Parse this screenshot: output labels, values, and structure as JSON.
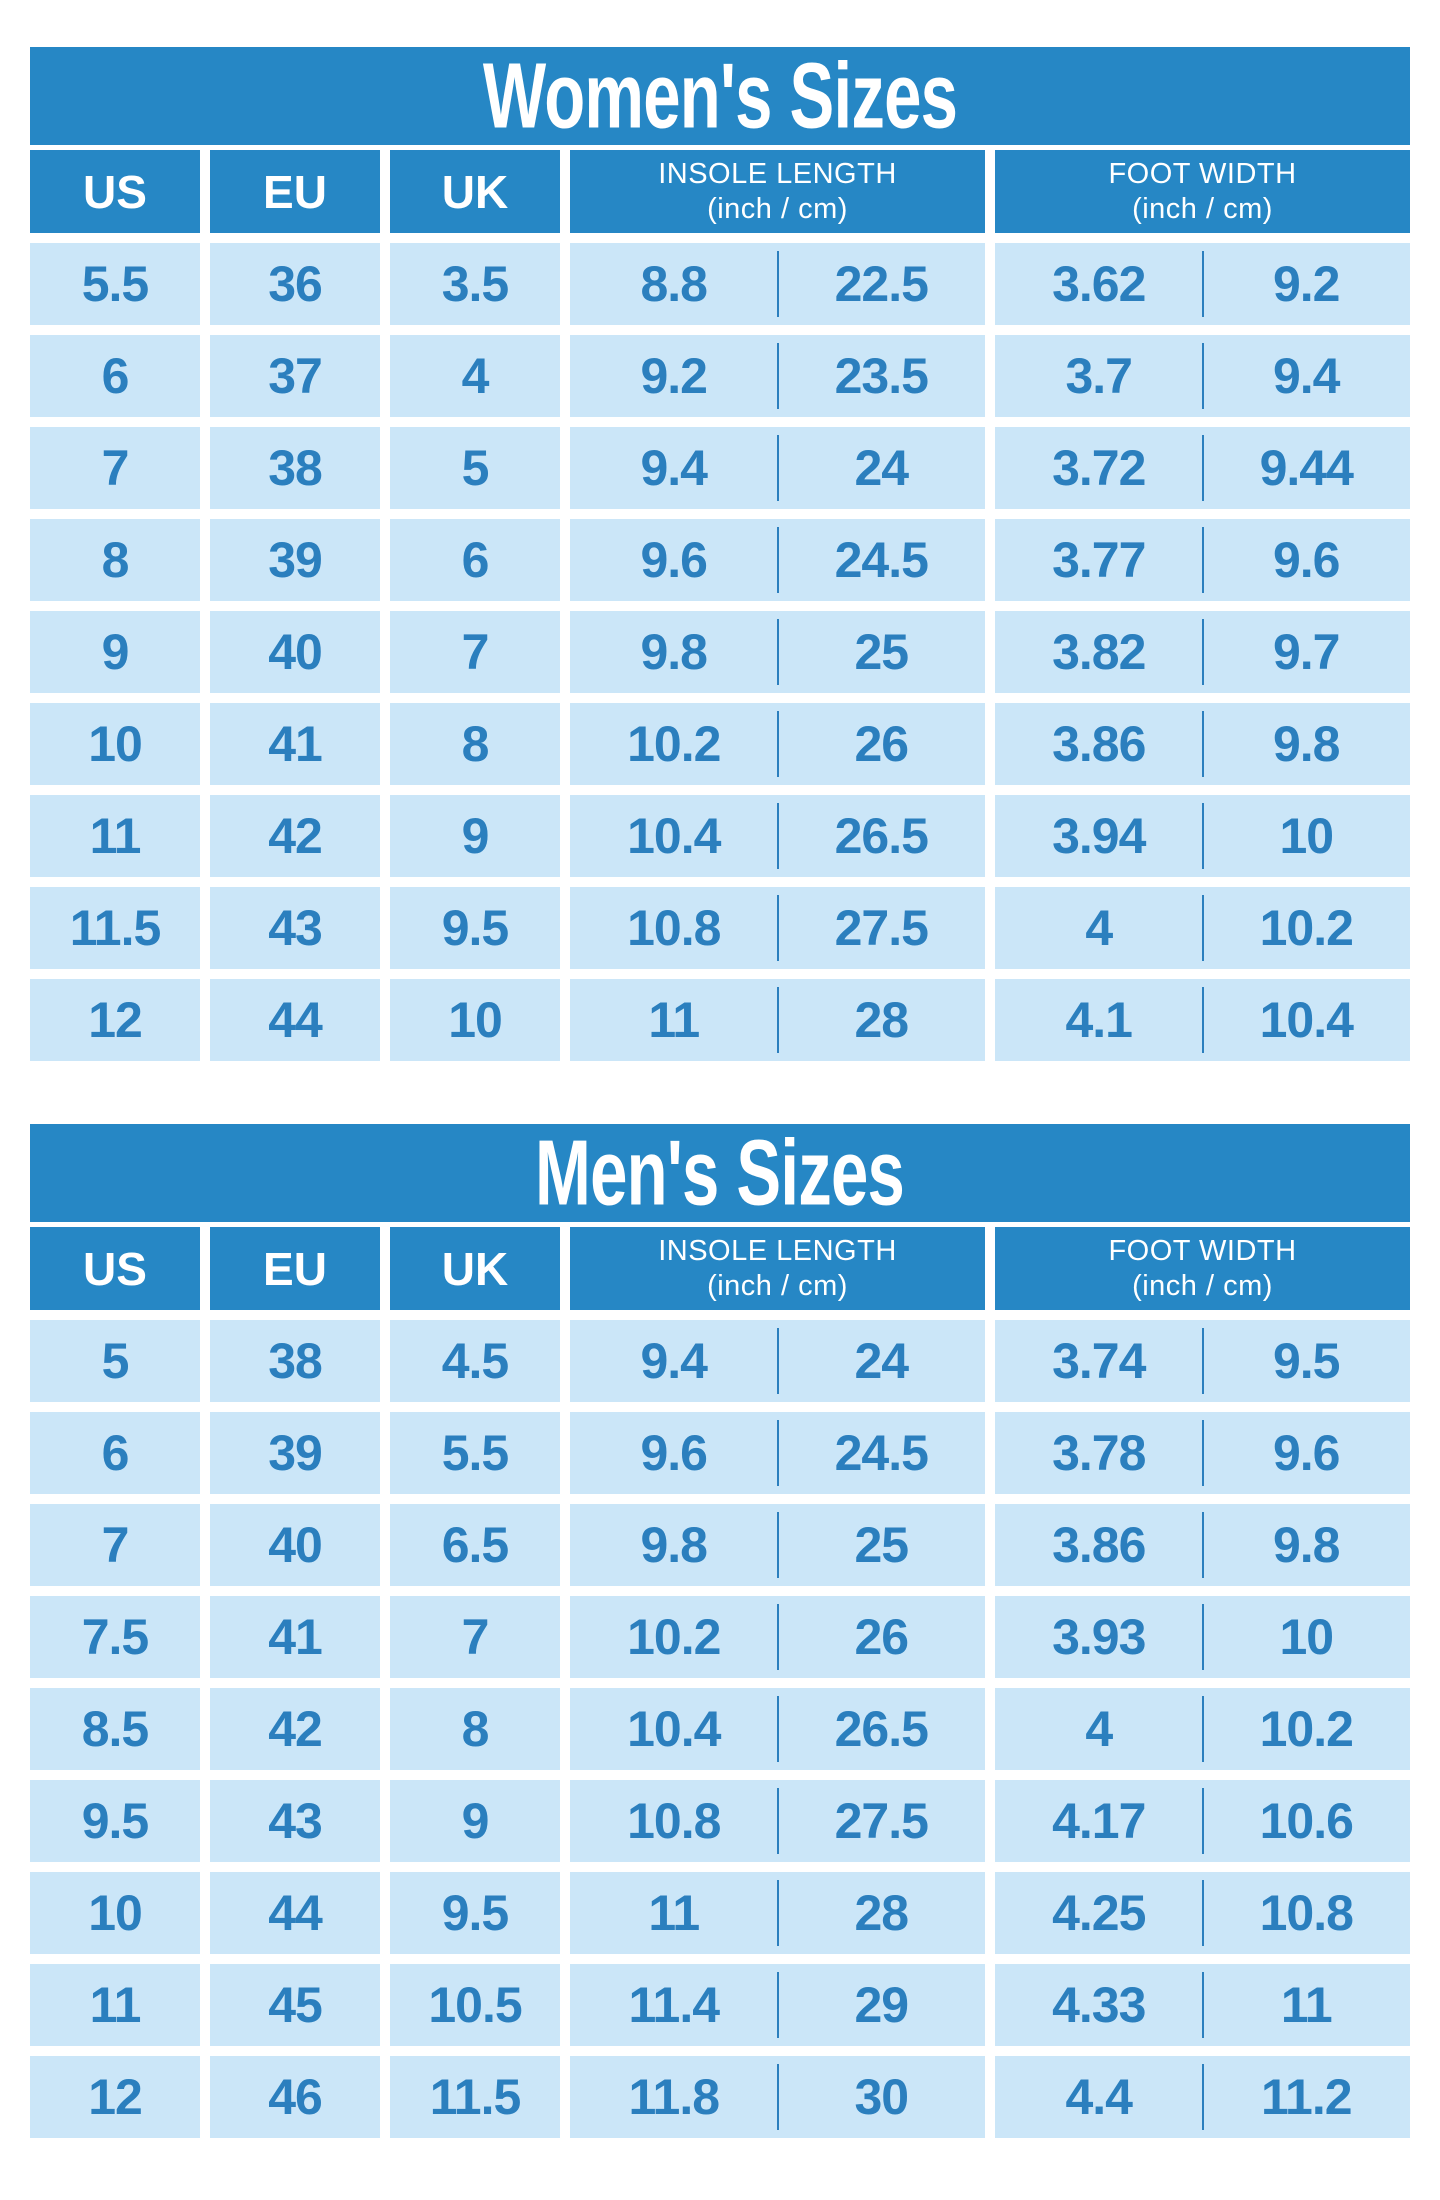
{
  "colors": {
    "primary_blue": "#2687c5",
    "cell_light_blue": "#cbe6f8",
    "number_blue": "#2b7fbe",
    "text_white": "#ffffff"
  },
  "chart_data": [
    {
      "type": "table",
      "title": "Women's Sizes",
      "headers": {
        "us": "US",
        "eu": "EU",
        "uk": "UK",
        "insole_label": "INSOLE LENGTH",
        "insole_unit": "(inch / cm)",
        "foot_label": "FOOT WIDTH",
        "foot_unit": "(inch / cm)"
      },
      "rows": [
        {
          "us": "5.5",
          "eu": "36",
          "uk": "3.5",
          "insole_inch": "8.8",
          "insole_cm": "22.5",
          "foot_inch": "3.62",
          "foot_cm": "9.2"
        },
        {
          "us": "6",
          "eu": "37",
          "uk": "4",
          "insole_inch": "9.2",
          "insole_cm": "23.5",
          "foot_inch": "3.7",
          "foot_cm": "9.4"
        },
        {
          "us": "7",
          "eu": "38",
          "uk": "5",
          "insole_inch": "9.4",
          "insole_cm": "24",
          "foot_inch": "3.72",
          "foot_cm": "9.44"
        },
        {
          "us": "8",
          "eu": "39",
          "uk": "6",
          "insole_inch": "9.6",
          "insole_cm": "24.5",
          "foot_inch": "3.77",
          "foot_cm": "9.6"
        },
        {
          "us": "9",
          "eu": "40",
          "uk": "7",
          "insole_inch": "9.8",
          "insole_cm": "25",
          "foot_inch": "3.82",
          "foot_cm": "9.7"
        },
        {
          "us": "10",
          "eu": "41",
          "uk": "8",
          "insole_inch": "10.2",
          "insole_cm": "26",
          "foot_inch": "3.86",
          "foot_cm": "9.8"
        },
        {
          "us": "11",
          "eu": "42",
          "uk": "9",
          "insole_inch": "10.4",
          "insole_cm": "26.5",
          "foot_inch": "3.94",
          "foot_cm": "10"
        },
        {
          "us": "11.5",
          "eu": "43",
          "uk": "9.5",
          "insole_inch": "10.8",
          "insole_cm": "27.5",
          "foot_inch": "4",
          "foot_cm": "10.2"
        },
        {
          "us": "12",
          "eu": "44",
          "uk": "10",
          "insole_inch": "11",
          "insole_cm": "28",
          "foot_inch": "4.1",
          "foot_cm": "10.4"
        }
      ]
    },
    {
      "type": "table",
      "title": "Men's Sizes",
      "headers": {
        "us": "US",
        "eu": "EU",
        "uk": "UK",
        "insole_label": "INSOLE LENGTH",
        "insole_unit": "(inch / cm)",
        "foot_label": "FOOT WIDTH",
        "foot_unit": "(inch / cm)"
      },
      "rows": [
        {
          "us": "5",
          "eu": "38",
          "uk": "4.5",
          "insole_inch": "9.4",
          "insole_cm": "24",
          "foot_inch": "3.74",
          "foot_cm": "9.5"
        },
        {
          "us": "6",
          "eu": "39",
          "uk": "5.5",
          "insole_inch": "9.6",
          "insole_cm": "24.5",
          "foot_inch": "3.78",
          "foot_cm": "9.6"
        },
        {
          "us": "7",
          "eu": "40",
          "uk": "6.5",
          "insole_inch": "9.8",
          "insole_cm": "25",
          "foot_inch": "3.86",
          "foot_cm": "9.8"
        },
        {
          "us": "7.5",
          "eu": "41",
          "uk": "7",
          "insole_inch": "10.2",
          "insole_cm": "26",
          "foot_inch": "3.93",
          "foot_cm": "10"
        },
        {
          "us": "8.5",
          "eu": "42",
          "uk": "8",
          "insole_inch": "10.4",
          "insole_cm": "26.5",
          "foot_inch": "4",
          "foot_cm": "10.2"
        },
        {
          "us": "9.5",
          "eu": "43",
          "uk": "9",
          "insole_inch": "10.8",
          "insole_cm": "27.5",
          "foot_inch": "4.17",
          "foot_cm": "10.6"
        },
        {
          "us": "10",
          "eu": "44",
          "uk": "9.5",
          "insole_inch": "11",
          "insole_cm": "28",
          "foot_inch": "4.25",
          "foot_cm": "10.8"
        },
        {
          "us": "11",
          "eu": "45",
          "uk": "10.5",
          "insole_inch": "11.4",
          "insole_cm": "29",
          "foot_inch": "4.33",
          "foot_cm": "11"
        },
        {
          "us": "12",
          "eu": "46",
          "uk": "11.5",
          "insole_inch": "11.8",
          "insole_cm": "30",
          "foot_inch": "4.4",
          "foot_cm": "11.2"
        }
      ]
    }
  ]
}
